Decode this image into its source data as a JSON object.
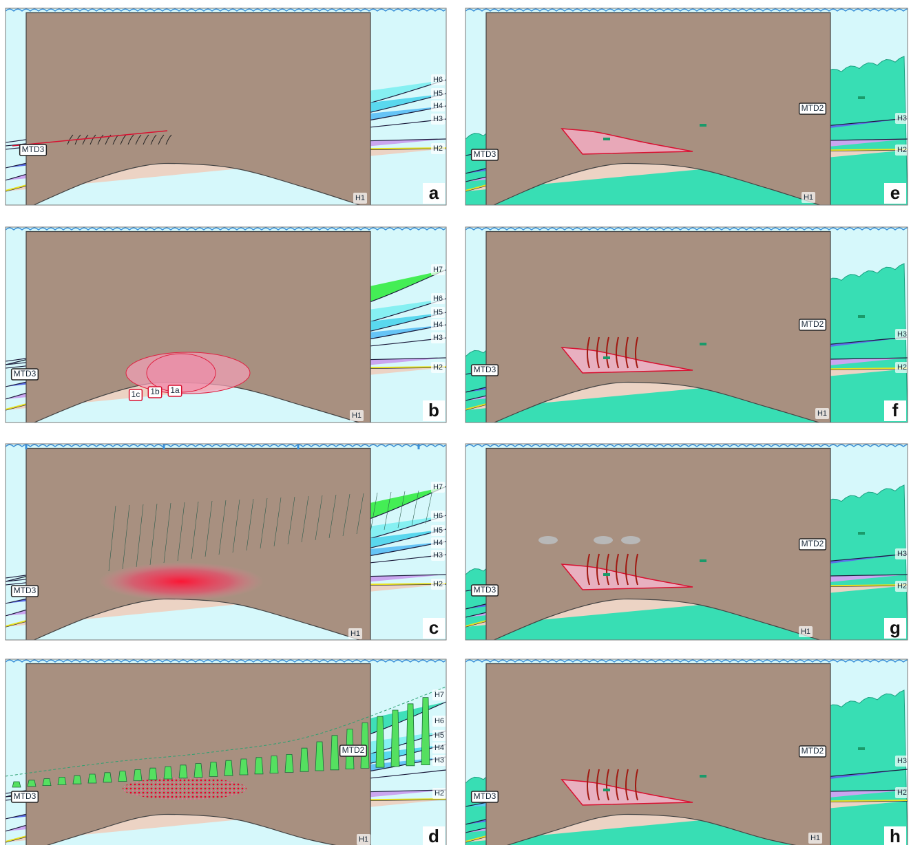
{
  "panels": [
    {
      "letter": "a",
      "labels": [
        "H6",
        "H5",
        "H4",
        "H3",
        "H2",
        "H1",
        "MTD3"
      ]
    },
    {
      "letter": "b",
      "labels": [
        "H7",
        "H6",
        "H5",
        "H4",
        "H3",
        "H2",
        "H1",
        "MTD3",
        "1c",
        "1b",
        "1a"
      ]
    },
    {
      "letter": "c",
      "labels": [
        "H7",
        "H6",
        "H5",
        "H4",
        "H3",
        "H2",
        "H1",
        "MTD3"
      ]
    },
    {
      "letter": "d",
      "labels": [
        "H7",
        "H6",
        "H5",
        "H4",
        "H3",
        "H2",
        "H1",
        "MTD3",
        "MTD2"
      ]
    },
    {
      "letter": "e",
      "labels": [
        "MTD2",
        "H3",
        "H2",
        "H1",
        "MTD3"
      ]
    },
    {
      "letter": "f",
      "labels": [
        "MTD2",
        "H3",
        "H2",
        "H1",
        "MTD3"
      ]
    },
    {
      "letter": "g",
      "labels": [
        "MTD2",
        "H3",
        "H2",
        "H1",
        "MTD3"
      ]
    },
    {
      "letter": "h",
      "labels": [
        "MTD2",
        "H3",
        "H2",
        "H1",
        "MTD3"
      ]
    }
  ]
}
